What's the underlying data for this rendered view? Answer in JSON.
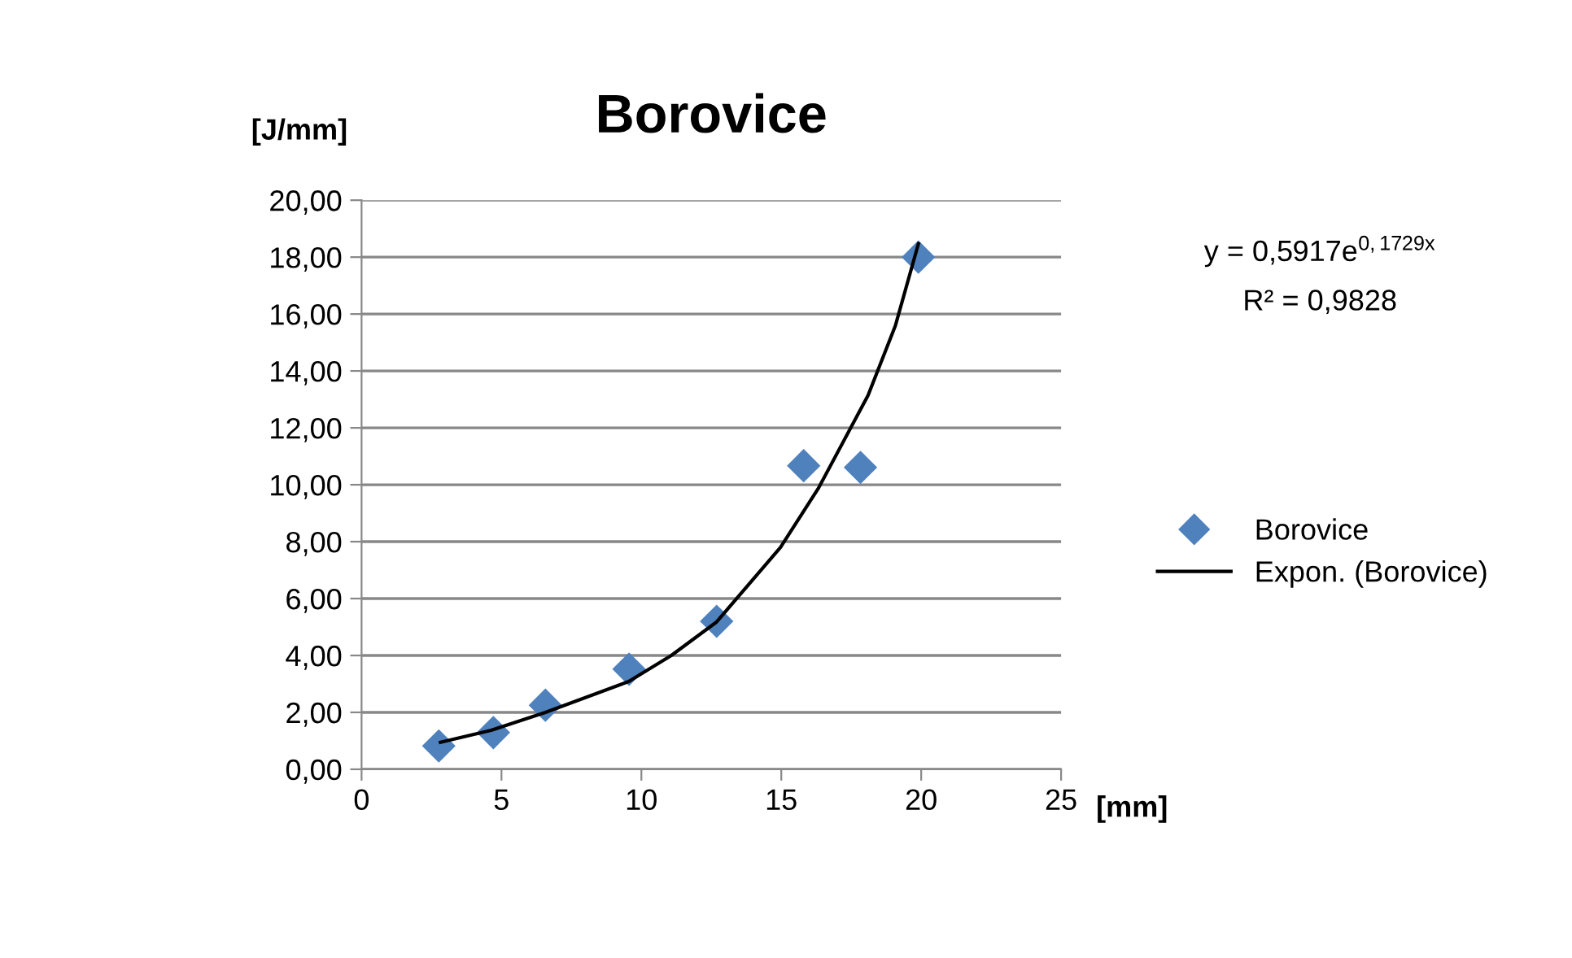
{
  "chart_data": {
    "type": "scatter",
    "title": "Borovice",
    "xlabel": "[mm]",
    "ylabel": "[J/mm]",
    "series": [
      {
        "name": "Borovice",
        "color": "#4f81bd",
        "marker": "diamond",
        "x": [
          2.76,
          4.71,
          6.57,
          9.56,
          12.69,
          15.8,
          17.83,
          19.9
        ],
        "values": [
          0.82,
          1.29,
          2.25,
          3.52,
          5.2,
          10.67,
          10.61,
          18.0
        ]
      },
      {
        "name": "Expon. (Borovice)",
        "type": "line",
        "color": "#000000",
        "marker": "none",
        "line_style": "solid",
        "x": [
          2.82,
          4.63,
          6.57,
          9.56,
          11.07,
          12.69,
          14.97,
          16.34,
          18.1,
          19.08,
          19.9
        ],
        "values": [
          0.95,
          1.37,
          2.0,
          3.09,
          4.0,
          5.18,
          7.8,
          9.9,
          13.14,
          15.6,
          18.47
        ]
      }
    ],
    "annotations": [
      "y = 0,5917e$^{0,1729x}$",
      "R² = 0,9828"
    ],
    "xlim": [
      0,
      25
    ],
    "xticks": [
      0,
      5,
      10,
      15,
      20,
      25
    ],
    "ylim": [
      0,
      20
    ],
    "yticks": [
      {
        "value": 0,
        "label": "0,00"
      },
      {
        "value": 2,
        "label": "2,00"
      },
      {
        "value": 4,
        "label": "4,00"
      },
      {
        "value": 6,
        "label": "6,00"
      },
      {
        "value": 8,
        "label": "8,00"
      },
      {
        "value": 10,
        "label": "10,00"
      },
      {
        "value": 12,
        "label": "12,00"
      },
      {
        "value": 14,
        "label": "14,00"
      },
      {
        "value": 16,
        "label": "16,00"
      },
      {
        "value": 18,
        "label": "18,00"
      },
      {
        "value": 20,
        "label": "20,00"
      }
    ],
    "grid": "y",
    "legend": "right"
  }
}
